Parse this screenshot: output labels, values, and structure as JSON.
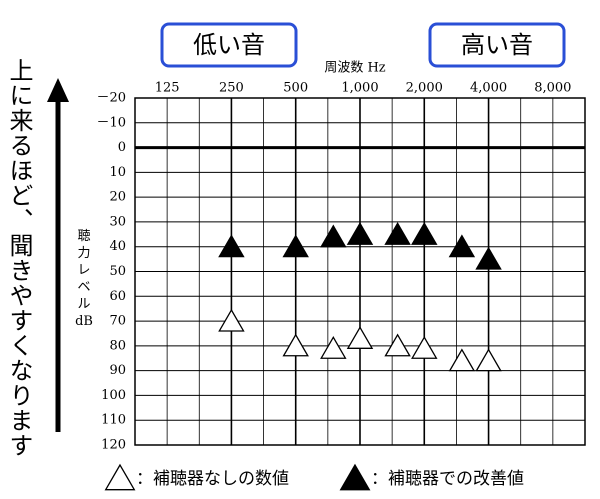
{
  "chart_data": {
    "type": "audiogram",
    "buttons": [
      "低い音",
      "高い音"
    ],
    "xlabel": "周波数 Hz",
    "ylabel": "聴力レベル dB",
    "caption": "上に来るほど、聞きやすくなります",
    "xscale": "log",
    "xlim": [
      88.4,
      11314
    ],
    "xticks": [
      125,
      250,
      500,
      {
        "value": 1000,
        "label": "1,000"
      },
      {
        "value": 2000,
        "label": "2,000"
      },
      {
        "value": 4000,
        "label": "4,000"
      },
      {
        "value": 8000,
        "label": "8,000"
      }
    ],
    "ylim": [
      -20,
      120
    ],
    "yticks": [
      {
        "value": -20,
        "label": "－20"
      },
      {
        "value": -10,
        "label": "－10"
      },
      0,
      10,
      20,
      30,
      40,
      50,
      60,
      70,
      80,
      90,
      100,
      110,
      120
    ],
    "grid": true,
    "x": [
      250,
      500,
      750,
      1000,
      1500,
      2000,
      3000,
      4000
    ],
    "series": [
      {
        "name": "：補聴器なしの数値",
        "marker": "open-triangle",
        "color": "#000000",
        "values": [
          70,
          80,
          81,
          77,
          80,
          81,
          86,
          86
        ]
      },
      {
        "name": "：補聴器での改善値",
        "marker": "filled-triangle",
        "color": "#000000",
        "values": [
          40,
          40,
          36,
          35,
          35,
          35,
          40,
          45
        ]
      }
    ]
  }
}
